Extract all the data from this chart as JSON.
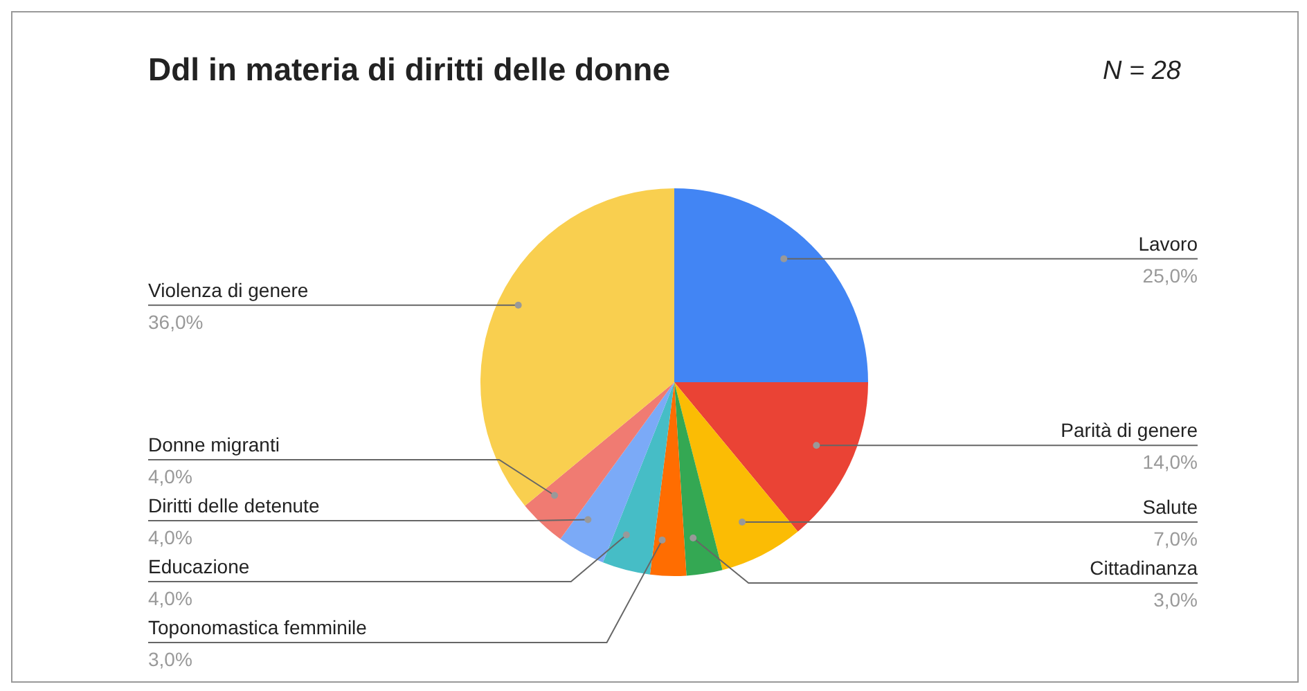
{
  "chart_data": {
    "type": "pie",
    "title": "Ddl in materia di diritti delle donne",
    "annotations": [
      "N = 28"
    ],
    "categories": [
      "Lavoro",
      "Parità di genere",
      "Salute",
      "Cittadinanza",
      "Toponomastica femminile",
      "Educazione",
      "Diritti delle detenute",
      "Donne migranti",
      "Violenza di genere"
    ],
    "values": [
      25,
      14,
      7,
      3,
      3,
      4,
      4,
      4,
      36
    ],
    "value_labels": [
      "25,0%",
      "14,0%",
      "7,0%",
      "3,0%",
      "3,0%",
      "4,0%",
      "4,0%",
      "4,0%",
      "36,0%"
    ],
    "colors": [
      "#4285f4",
      "#ea4335",
      "#fbbc04",
      "#34a853",
      "#ff6d01",
      "#46bdc6",
      "#7baaf7",
      "#f07b72",
      "#f9cf4f"
    ]
  }
}
